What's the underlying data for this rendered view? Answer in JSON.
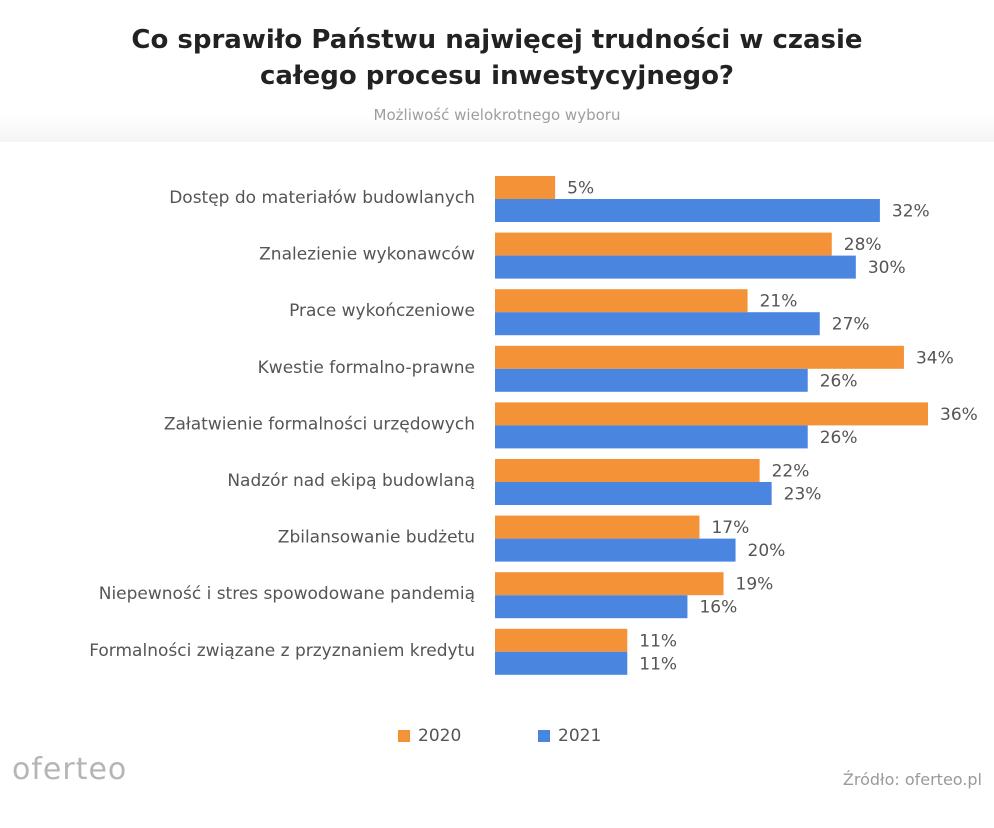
{
  "header": {
    "title": "Co sprawiło Państwu najwięcej trudności w czasie\ncałego procesu inwestycyjnego?",
    "subtitle": "Możliwość wielokrotnego wyboru"
  },
  "chart_data": {
    "type": "bar",
    "orientation": "horizontal",
    "categories": [
      "Dostęp do materiałów budowlanych",
      "Znalezienie wykonawców",
      "Prace wykończeniowe",
      "Kwestie formalno-prawne",
      "Załatwienie formalności urzędowych",
      "Nadzór nad ekipą budowlaną",
      "Zbilansowanie budżetu",
      "Niepewność i stres spowodowane pandemią",
      "Formalności związane z przyznaniem kredytu"
    ],
    "series": [
      {
        "name": "2020",
        "color": "#f39237",
        "values": [
          5,
          28,
          21,
          34,
          36,
          22,
          17,
          19,
          11
        ]
      },
      {
        "name": "2021",
        "color": "#4a86e0",
        "values": [
          32,
          30,
          27,
          26,
          26,
          23,
          20,
          16,
          11
        ]
      }
    ],
    "value_suffix": "%",
    "xlim": [
      0,
      36
    ],
    "grid": false,
    "legend_position": "bottom"
  },
  "footer": {
    "brand": "oferteo",
    "source": "Źródło: oferteo.pl"
  }
}
